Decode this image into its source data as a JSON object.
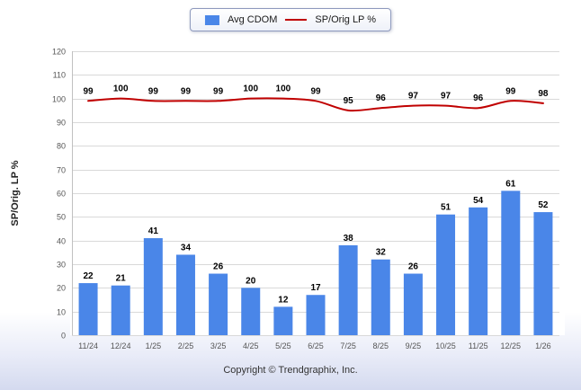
{
  "legend": {
    "bar_label": "Avg CDOM",
    "line_label": "SP/Orig LP %"
  },
  "footer": {
    "copyright": "Copyright © Trendgraphix, Inc."
  },
  "chart_data": {
    "type": "bar",
    "subtype": "bar-and-line-combo",
    "categories": [
      "11/24",
      "12/24",
      "1/25",
      "2/25",
      "3/25",
      "4/25",
      "5/25",
      "6/25",
      "7/25",
      "8/25",
      "9/25",
      "10/25",
      "11/25",
      "12/25",
      "1/26"
    ],
    "series": [
      {
        "name": "Avg CDOM",
        "type": "bar",
        "color": "#4a86e8",
        "values": [
          22,
          21,
          41,
          34,
          26,
          20,
          12,
          17,
          38,
          32,
          26,
          51,
          54,
          61,
          52
        ]
      },
      {
        "name": "SP/Orig LP %",
        "type": "line",
        "color": "#c00000",
        "values": [
          99,
          100,
          99,
          99,
          99,
          100,
          100,
          99,
          95,
          96,
          97,
          97,
          96,
          99,
          98
        ]
      }
    ],
    "title": "",
    "xlabel": "",
    "ylabel": "SP/Orig. LP %",
    "ylim": [
      0,
      120
    ],
    "ytick_step": 10,
    "grid": true,
    "legend_position": "top-center",
    "grid_color": "#d9d9d9",
    "axis_color": "#c0c0c0",
    "tick_label_color": "#555555",
    "value_label_color": "#000000"
  }
}
